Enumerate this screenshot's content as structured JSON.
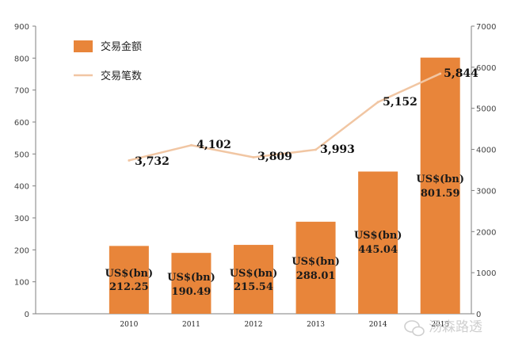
{
  "chart_data": {
    "type": "bar",
    "categories": [
      "2010",
      "2011",
      "2012",
      "2013",
      "2014",
      "2015"
    ],
    "series": [
      {
        "name": "交易金额",
        "kind": "bar",
        "axis": "left",
        "color": "#e8853a",
        "values": [
          212.25,
          190.49,
          215.54,
          288.01,
          445.04,
          801.59
        ],
        "value_prefix": "US$(bn)"
      },
      {
        "name": "交易笔数",
        "kind": "line",
        "axis": "right",
        "color": "#f1c6a3",
        "values": [
          3732,
          4102,
          3809,
          3993,
          5152,
          5844
        ]
      }
    ],
    "ylim_left": [
      0,
      900
    ],
    "ylim_right": [
      0,
      7000
    ],
    "yticks_left": [
      "0",
      "100",
      "200",
      "300",
      "400",
      "500",
      "600",
      "700",
      "800",
      "900"
    ],
    "yticks_right": [
      "0",
      "1000",
      "2000",
      "3000",
      "4000",
      "5000",
      "6000",
      "7000"
    ],
    "bar_labels": [
      "212.25",
      "190.49",
      "215.54",
      "288.01",
      "445.04",
      "801.59"
    ],
    "line_labels": [
      "3,732",
      "4,102",
      "3,809",
      "3,993",
      "5,152",
      "5,844"
    ],
    "legend_position": "top-left",
    "grid": false
  },
  "watermark": {
    "text": "汤森路透",
    "icon": "wechat-icon"
  }
}
